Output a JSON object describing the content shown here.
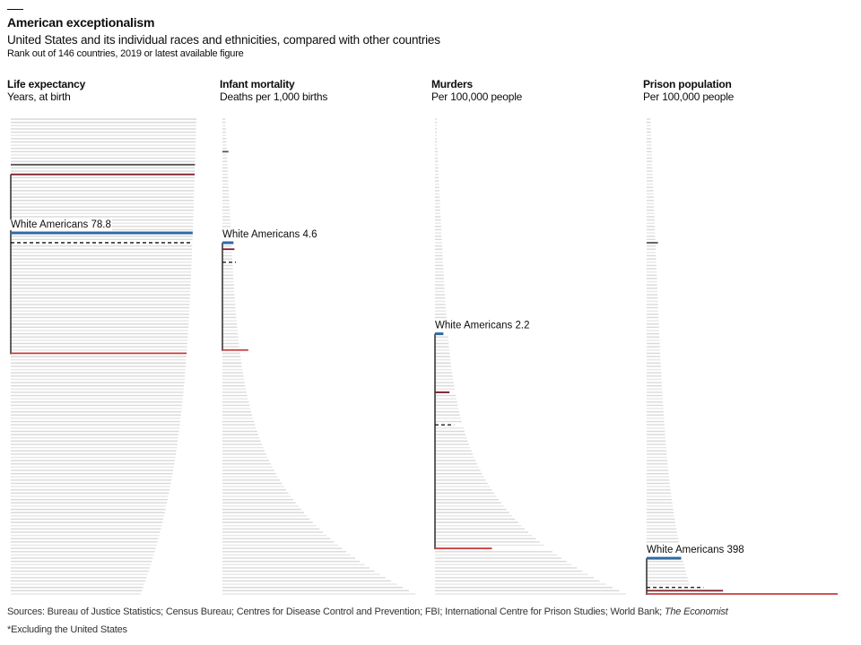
{
  "header": {
    "title": "American exceptionalism",
    "subtitle": "United States and its individual races and ethnicities, compared with other countries",
    "rank_note": "Rank out of 146 countries, 2019 or latest available figure"
  },
  "footer": {
    "sources_prefix": "Sources: Bureau of Justice Statistics; Census Bureau; Centres for Disease Control and Prevention; FBI; International Centre for Prison Studies; World Bank; ",
    "sources_italic": "The Economist",
    "footnote": "*Excluding the United States"
  },
  "colors": {
    "country_line": "#d9d9d9",
    "white_americans": "#2f6aa3",
    "black_americans": "#c83c3c",
    "maroon_group": "#7a1e2a",
    "dark_group": "#555555",
    "us_dashed": "#0d0d0d",
    "bracket": "#0d0d0d"
  },
  "chart_data": [
    {
      "type": "bar",
      "title": "Life expectancy",
      "subtitle": "Years, at birth",
      "n_countries": 146,
      "order": "descending",
      "value_range": [
        50,
        85
      ],
      "highlight_label": "White Americans 78.8",
      "highlights": [
        {
          "group": "dark",
          "rank": 15,
          "value": 81.3
        },
        {
          "group": "maroon",
          "rank": 18,
          "value": 81.0
        },
        {
          "group": "white",
          "rank": 36,
          "value": 78.8
        },
        {
          "group": "us",
          "rank": 39,
          "value": 78.5
        },
        {
          "group": "black",
          "rank": 73,
          "value": 74.7
        }
      ],
      "bracket_ranks": [
        18,
        73
      ]
    },
    {
      "type": "bar",
      "title": "Infant mortality",
      "subtitle": "Deaths per 1,000 births",
      "n_countries": 146,
      "order": "ascending",
      "value_range": [
        0,
        80
      ],
      "highlight_label": "White Americans 4.6",
      "highlights": [
        {
          "group": "dark",
          "rank": 11,
          "value": 2.5
        },
        {
          "group": "white",
          "rank": 39,
          "value": 4.6
        },
        {
          "group": "maroon",
          "rank": 41,
          "value": 5.0
        },
        {
          "group": "us",
          "rank": 45,
          "value": 5.6
        },
        {
          "group": "black",
          "rank": 72,
          "value": 10.8
        }
      ],
      "bracket_ranks": [
        39,
        72
      ]
    },
    {
      "type": "bar",
      "title": "Murders",
      "subtitle": "Per 100,000 people",
      "n_countries": 146,
      "order": "ascending",
      "value_range": [
        0,
        50
      ],
      "highlight_label": "White Americans 2.2",
      "highlights": [
        {
          "group": "white",
          "rank": 67,
          "value": 2.2
        },
        {
          "group": "maroon",
          "rank": 85,
          "value": 3.8
        },
        {
          "group": "us",
          "rank": 95,
          "value": 5.0
        },
        {
          "group": "black",
          "rank": 133,
          "value": 14.9
        }
      ],
      "bracket_ranks": [
        67,
        133
      ]
    },
    {
      "type": "bar",
      "title": "Prison population",
      "subtitle": "Per 100,000 people",
      "n_countries": 146,
      "order": "ascending",
      "value_range": [
        0,
        2200
      ],
      "highlight_label": "White Americans 398",
      "highlights": [
        {
          "group": "dark",
          "rank": 39,
          "value": 130
        },
        {
          "group": "white",
          "rank": 136,
          "value": 398
        },
        {
          "group": "us",
          "rank": 145,
          "value": 655
        },
        {
          "group": "maroon",
          "rank": 146,
          "value": 880
        },
        {
          "group": "black",
          "rank": 147,
          "value": 2200
        }
      ],
      "bracket_ranks": [
        136,
        147
      ]
    }
  ]
}
